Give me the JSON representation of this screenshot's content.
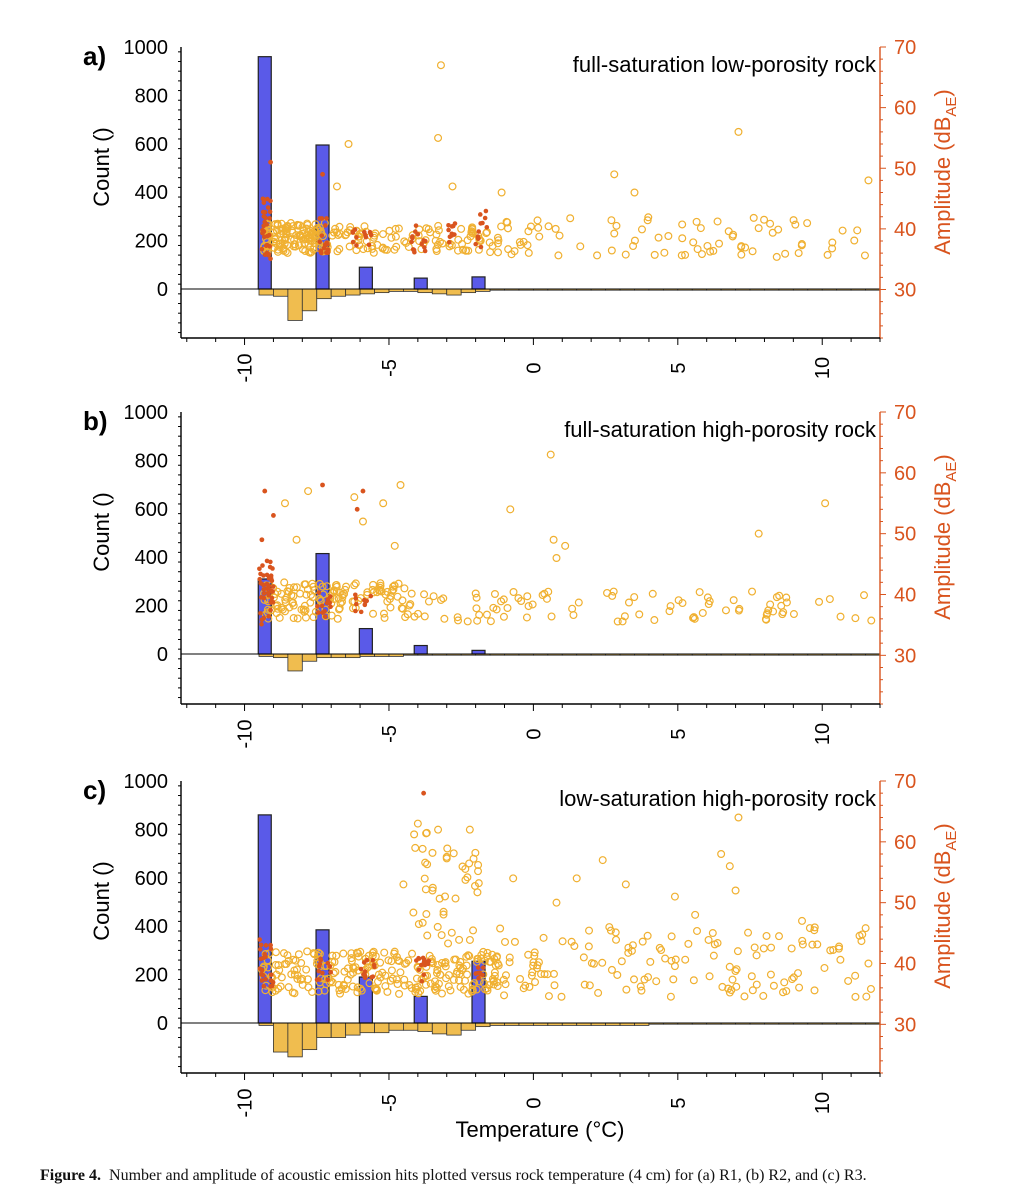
{
  "figure": {
    "caption_label": "Figure 4.",
    "caption_text": "Number and amplitude of acoustic emission hits plotted versus rock temperature (4 cm) for (a) R1, (b) R2, and (c) R3."
  },
  "colors": {
    "count_bar": "#5a5ae8",
    "hist_bar": "#f0bd4f",
    "amp_circle": "#f0b030",
    "amp_dot": "#d9541e",
    "right_axis": "#d9541e"
  },
  "chart_data": [
    {
      "type": "bar+scatter",
      "panel_label": "a)",
      "title": "full-saturation low-porosity rock",
      "xlabel": "",
      "ylabel_left": "Count ()",
      "ylabel_right": "Amplitude (dB",
      "ylabel_right_sub": "AE",
      "ylabel_right_close": ")",
      "xlim": [
        -12.2,
        12
      ],
      "ylim_left": [
        -200,
        1000
      ],
      "ylim_right": [
        22,
        70
      ],
      "x_ticks": [
        -10,
        -5,
        0,
        5,
        10
      ],
      "x_tick_labels": [
        "-10",
        "-5",
        "0",
        "5",
        "10"
      ],
      "y_left_ticks": [
        0,
        200,
        400,
        600,
        800,
        1000
      ],
      "y_left_tick_labels": [
        "0",
        "200",
        "400",
        "600",
        "800",
        "1000"
      ],
      "y_right_ticks": [
        30,
        40,
        50,
        60,
        70
      ],
      "y_right_tick_labels": [
        "30",
        "40",
        "50",
        "60",
        "70"
      ],
      "count_bars": {
        "x": [
          -9.3,
          -7.3,
          -5.8,
          -3.9,
          -1.9
        ],
        "values": [
          960,
          595,
          90,
          45,
          50
        ]
      },
      "count_histogram": {
        "x_start": -9.5,
        "bin_width": 0.5,
        "values": [
          -25,
          -30,
          -130,
          -90,
          -40,
          -30,
          -25,
          -20,
          -15,
          -10,
          -10,
          -15,
          -20,
          -25,
          -15,
          -10,
          -5,
          -5,
          -5,
          -5,
          -5,
          -5,
          -5,
          -5,
          -5,
          -5,
          -5,
          -5,
          -5,
          -5,
          -5,
          -5,
          -5,
          -5,
          -5,
          -5,
          -5,
          -5,
          -5,
          -5,
          -5,
          -5,
          -5
        ]
      },
      "amplitude_highlights": [
        {
          "x": -3.2,
          "y": 67
        },
        {
          "x": -6.4,
          "y": 54
        },
        {
          "x": -3.3,
          "y": 55
        },
        {
          "x": 2.8,
          "y": 49
        },
        {
          "x": 7.1,
          "y": 56
        },
        {
          "x": 11.6,
          "y": 48
        },
        {
          "x": -1.1,
          "y": 46
        },
        {
          "x": -2.8,
          "y": 47
        },
        {
          "x": -6.8,
          "y": 47
        },
        {
          "x": 3.5,
          "y": 46
        }
      ],
      "amplitude_clusters": [
        {
          "x0": -9.4,
          "x1": -7.2,
          "y0": 36,
          "y1": 41,
          "n": 130,
          "seed": 11
        },
        {
          "x0": -7.2,
          "x1": -1.0,
          "y0": 36,
          "y1": 40.5,
          "n": 110,
          "seed": 12
        },
        {
          "x0": -1.0,
          "x1": 11.8,
          "y0": 35,
          "y1": 42,
          "n": 80,
          "seed": 13
        }
      ],
      "dot_clusters": [
        {
          "x0": -9.4,
          "x1": -9.1,
          "y0": 35,
          "y1": 45,
          "n": 30,
          "seed": 14
        },
        {
          "x0": -7.4,
          "x1": -7.1,
          "y0": 36,
          "y1": 42,
          "n": 18,
          "seed": 15
        },
        {
          "x0": -6.3,
          "x1": -5.6,
          "y0": 37,
          "y1": 40,
          "n": 12,
          "seed": 16
        },
        {
          "x0": -4.3,
          "x1": -3.7,
          "y0": 36,
          "y1": 41,
          "n": 14,
          "seed": 17
        },
        {
          "x0": -3.0,
          "x1": -2.7,
          "y0": 37,
          "y1": 41,
          "n": 10,
          "seed": 18
        },
        {
          "x0": -2.0,
          "x1": -1.6,
          "y0": 37,
          "y1": 43,
          "n": 12,
          "seed": 19
        }
      ],
      "dot_highlights": [
        {
          "x": -9.1,
          "y": 51
        },
        {
          "x": -7.3,
          "y": 49
        }
      ]
    },
    {
      "type": "bar+scatter",
      "panel_label": "b)",
      "title": "full-saturation high-porosity rock",
      "xlabel": "",
      "ylabel_left": "Count ()",
      "ylabel_right": "Amplitude (dB",
      "ylabel_right_sub": "AE",
      "ylabel_right_close": ")",
      "xlim": [
        -12.2,
        12
      ],
      "ylim_left": [
        -200,
        1000
      ],
      "ylim_right": [
        22,
        70
      ],
      "x_ticks": [
        -10,
        -5,
        0,
        5,
        10
      ],
      "x_tick_labels": [
        "-10",
        "-5",
        "0",
        "5",
        "10"
      ],
      "y_left_ticks": [
        0,
        200,
        400,
        600,
        800,
        1000
      ],
      "y_left_tick_labels": [
        "0",
        "200",
        "400",
        "600",
        "800",
        "1000"
      ],
      "y_right_ticks": [
        30,
        40,
        50,
        60,
        70
      ],
      "y_right_tick_labels": [
        "30",
        "40",
        "50",
        "60",
        "70"
      ],
      "count_bars": {
        "x": [
          -9.3,
          -7.3,
          -5.8,
          -3.9,
          -1.9
        ],
        "values": [
          310,
          415,
          105,
          35,
          15
        ]
      },
      "count_histogram": {
        "x_start": -9.5,
        "bin_width": 0.5,
        "values": [
          -10,
          -15,
          -70,
          -30,
          -15,
          -15,
          -15,
          -10,
          -10,
          -10,
          -5,
          -5,
          -5,
          -5,
          -5,
          -5,
          -5,
          -5,
          -5,
          -5,
          -5,
          -5,
          -5,
          -5,
          -5,
          -5,
          -5,
          -5,
          -5,
          -5,
          -5,
          -5,
          -5,
          -5,
          -5,
          -5,
          -5,
          -5,
          -5,
          -5,
          -5,
          -5,
          -5
        ]
      },
      "amplitude_highlights": [
        {
          "x": 0.6,
          "y": 63
        },
        {
          "x": 10.1,
          "y": 55
        },
        {
          "x": -0.8,
          "y": 54
        },
        {
          "x": 7.8,
          "y": 50
        },
        {
          "x": 0.7,
          "y": 49
        },
        {
          "x": 1.1,
          "y": 48
        },
        {
          "x": -4.6,
          "y": 58
        },
        {
          "x": -7.8,
          "y": 57
        },
        {
          "x": -6.2,
          "y": 56
        },
        {
          "x": -5.2,
          "y": 55
        },
        {
          "x": -8.6,
          "y": 55
        },
        {
          "x": -5.9,
          "y": 52
        },
        {
          "x": -4.8,
          "y": 48
        },
        {
          "x": -8.2,
          "y": 49
        },
        {
          "x": 0.8,
          "y": 46
        }
      ],
      "amplitude_clusters": [
        {
          "x0": -9.4,
          "x1": -4.2,
          "y0": 36,
          "y1": 42,
          "n": 140,
          "seed": 21
        },
        {
          "x0": -4.2,
          "x1": 11.8,
          "y0": 35.5,
          "y1": 40.5,
          "n": 90,
          "seed": 22
        }
      ],
      "dot_clusters": [
        {
          "x0": -9.5,
          "x1": -9.0,
          "y0": 35,
          "y1": 46,
          "n": 40,
          "seed": 23
        },
        {
          "x0": -7.5,
          "x1": -7.0,
          "y0": 36,
          "y1": 41,
          "n": 12,
          "seed": 24
        },
        {
          "x0": -6.2,
          "x1": -5.6,
          "y0": 37,
          "y1": 40,
          "n": 10,
          "seed": 25
        }
      ],
      "dot_highlights": [
        {
          "x": -9.3,
          "y": 57
        },
        {
          "x": -7.3,
          "y": 58
        },
        {
          "x": -9.0,
          "y": 53
        },
        {
          "x": -9.4,
          "y": 49
        },
        {
          "x": -5.9,
          "y": 57
        },
        {
          "x": -6.1,
          "y": 54
        }
      ]
    },
    {
      "type": "bar+scatter",
      "panel_label": "c)",
      "title": "low-saturation high-porosity rock",
      "xlabel": "Temperature (°C)",
      "ylabel_left": "Count ()",
      "ylabel_right": "Amplitude (dB",
      "ylabel_right_sub": "AE",
      "ylabel_right_close": ")",
      "xlim": [
        -12.2,
        12
      ],
      "ylim_left": [
        -200,
        1000
      ],
      "ylim_right": [
        22,
        70
      ],
      "x_ticks": [
        -10,
        -5,
        0,
        5,
        10
      ],
      "x_tick_labels": [
        "-10",
        "-5",
        "0",
        "5",
        "10"
      ],
      "y_left_ticks": [
        0,
        200,
        400,
        600,
        800,
        1000
      ],
      "y_left_tick_labels": [
        "0",
        "200",
        "400",
        "600",
        "800",
        "1000"
      ],
      "y_right_ticks": [
        30,
        40,
        50,
        60,
        70
      ],
      "y_right_tick_labels": [
        "30",
        "40",
        "50",
        "60",
        "70"
      ],
      "count_bars": {
        "x": [
          -9.3,
          -7.3,
          -5.8,
          -3.9,
          -1.9
        ],
        "values": [
          860,
          385,
          190,
          110,
          255
        ]
      },
      "count_histogram": {
        "x_start": -9.5,
        "bin_width": 0.5,
        "values": [
          -10,
          -120,
          -140,
          -110,
          -60,
          -60,
          -50,
          -40,
          -40,
          -30,
          -30,
          -35,
          -45,
          -50,
          -30,
          -15,
          -10,
          -10,
          -10,
          -10,
          -10,
          -10,
          -10,
          -10,
          -10,
          -10,
          -10,
          -5,
          -5,
          -5,
          -5,
          -5,
          -5,
          -5,
          -5,
          -5,
          -5,
          -5,
          -5,
          -5,
          -5,
          -5,
          -5
        ]
      },
      "amplitude_highlights": [
        {
          "x": 7.1,
          "y": 64
        },
        {
          "x": -4.0,
          "y": 63
        },
        {
          "x": -3.3,
          "y": 62
        },
        {
          "x": -2.2,
          "y": 62
        },
        {
          "x": 6.5,
          "y": 58
        },
        {
          "x": 2.4,
          "y": 57
        },
        {
          "x": 6.8,
          "y": 56
        },
        {
          "x": -0.7,
          "y": 54
        },
        {
          "x": 1.5,
          "y": 54
        },
        {
          "x": 3.2,
          "y": 53
        },
        {
          "x": -4.5,
          "y": 53
        },
        {
          "x": 4.9,
          "y": 51
        },
        {
          "x": 7.0,
          "y": 52
        },
        {
          "x": 9.3,
          "y": 47
        },
        {
          "x": 11.6,
          "y": 40
        },
        {
          "x": 0.8,
          "y": 50
        },
        {
          "x": 5.6,
          "y": 48
        }
      ],
      "amplitude_clusters": [
        {
          "x0": -9.4,
          "x1": -1.2,
          "y0": 35,
          "y1": 42,
          "n": 260,
          "seed": 31
        },
        {
          "x0": -1.2,
          "x1": 11.8,
          "y0": 34.5,
          "y1": 46,
          "n": 140,
          "seed": 32
        },
        {
          "x0": -4.2,
          "x1": -1.8,
          "y0": 43,
          "y1": 62,
          "n": 45,
          "seed": 33
        }
      ],
      "dot_clusters": [
        {
          "x0": -9.5,
          "x1": -9.0,
          "y0": 36,
          "y1": 44,
          "n": 22,
          "seed": 34
        },
        {
          "x0": -7.5,
          "x1": -7.0,
          "y0": 37,
          "y1": 41,
          "n": 12,
          "seed": 35
        },
        {
          "x0": -6.0,
          "x1": -5.5,
          "y0": 37,
          "y1": 41,
          "n": 12,
          "seed": 36
        },
        {
          "x0": -4.2,
          "x1": -3.6,
          "y0": 37,
          "y1": 41,
          "n": 16,
          "seed": 37
        },
        {
          "x0": -2.1,
          "x1": -1.7,
          "y0": 37,
          "y1": 40,
          "n": 8,
          "seed": 38
        }
      ],
      "dot_highlights": [
        {
          "x": -3.8,
          "y": 68
        },
        {
          "x": -9.1,
          "y": 43
        }
      ]
    }
  ]
}
